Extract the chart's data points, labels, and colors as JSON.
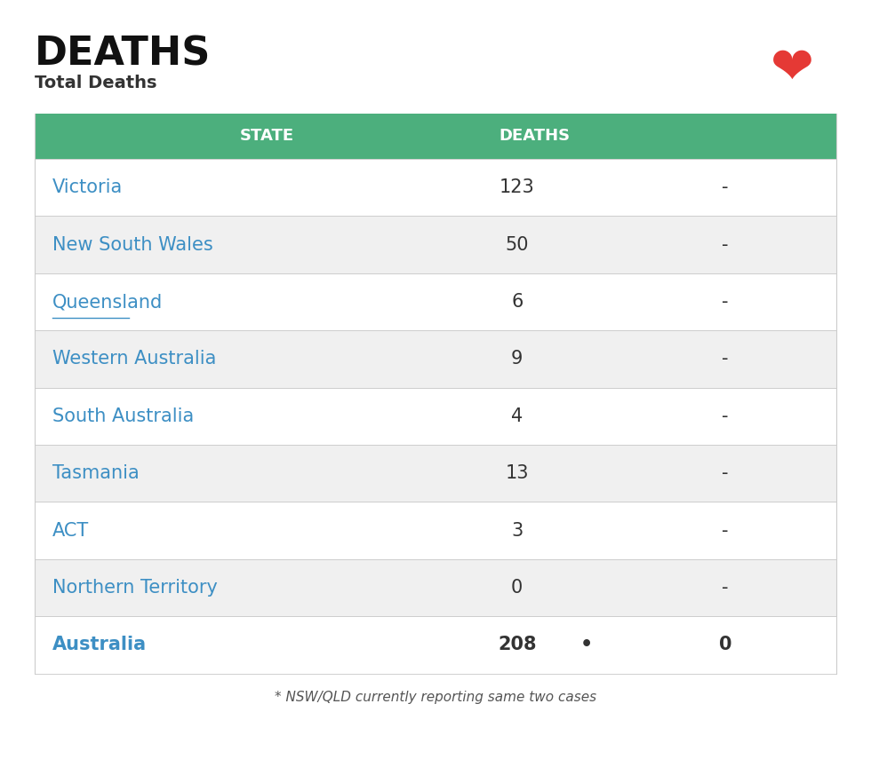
{
  "title": "DEATHS",
  "subtitle": "Total Deaths",
  "header_bg": "#4caf7d",
  "header_text_color": "#ffffff",
  "col1_header": "STATE",
  "col2_header": "DEATHS",
  "rows": [
    {
      "state": "Victoria",
      "deaths": "123",
      "change": "-",
      "bold": false,
      "underline": false
    },
    {
      "state": "New South Wales",
      "deaths": "50",
      "change": "-",
      "bold": false,
      "underline": false
    },
    {
      "state": "Queensland",
      "deaths": "6",
      "change": "-",
      "bold": false,
      "underline": true
    },
    {
      "state": "Western Australia",
      "deaths": "9",
      "change": "-",
      "bold": false,
      "underline": false
    },
    {
      "state": "South Australia",
      "deaths": "4",
      "change": "-",
      "bold": false,
      "underline": false
    },
    {
      "state": "Tasmania",
      "deaths": "13",
      "change": "-",
      "bold": false,
      "underline": false
    },
    {
      "state": "ACT",
      "deaths": "3",
      "change": "-",
      "bold": false,
      "underline": false
    },
    {
      "state": "Northern Territory",
      "deaths": "0",
      "change": "-",
      "bold": false,
      "underline": false
    },
    {
      "state": "Australia",
      "deaths": "208",
      "change": "0",
      "bold": true,
      "underline": false,
      "dot": true
    }
  ],
  "footnote": "* NSW/QLD currently reporting same two cases",
  "row_colors": [
    "#ffffff",
    "#f0f0f0"
  ],
  "total_row_color": "#ffffff",
  "state_color": "#3d8fc4",
  "number_color": "#333333",
  "total_state_color": "#3d8fc4",
  "total_number_color": "#333333",
  "bg_color": "#ffffff",
  "table_border_color": "#cccccc",
  "title_color": "#111111",
  "subtitle_color": "#333333",
  "footnote_color": "#555555"
}
